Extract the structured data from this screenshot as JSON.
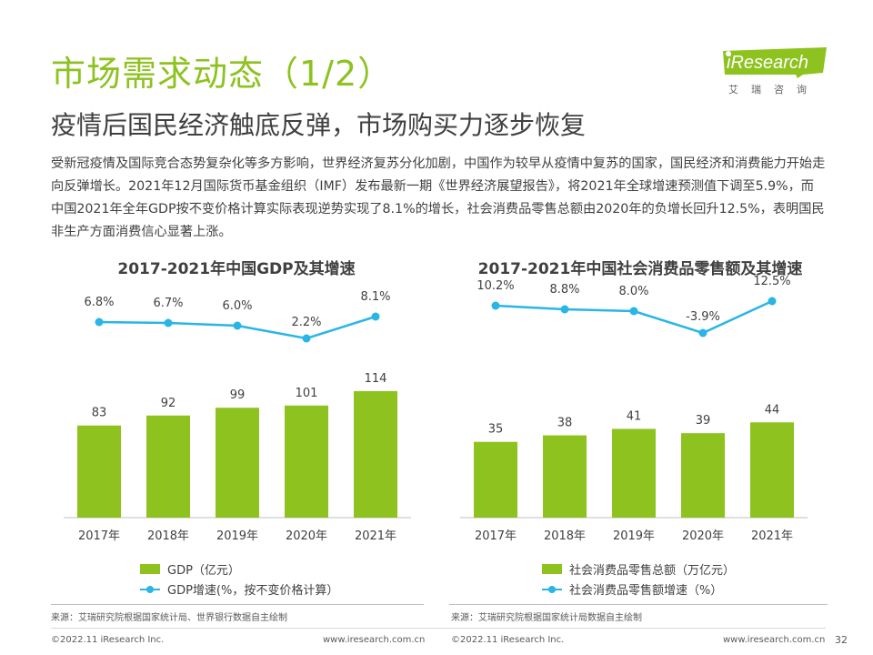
{
  "header": {
    "title": "市场需求动态（1/2）",
    "subtitle": "疫情后国民经济触底反弹，市场购买力逐步恢复"
  },
  "logo": {
    "text": "iResearch",
    "sub": "艾瑞咨询"
  },
  "body_text": "受新冠疫情及国际竞合态势复杂化等多方影响，世界经济复苏分化加剧，中国作为较早从疫情中复苏的国家，国民经济和消费能力开始走向反弹增长。2021年12月国际货币基金组织（IMF）发布最新一期《世界经济展望报告》，将2021年全球增速预测值下调至5.9%，而中国2021年全年GDP按不变价格计算实际表现逆势实现了8.1%的增长，社会消费品零售总额由2020年的负增长回升12.5%，表明国民非生产方面消费信心显著上涨。",
  "chart_data": [
    {
      "type": "bar",
      "title": "2017-2021年中国GDP及其增速",
      "categories": [
        "2017年",
        "2018年",
        "2019年",
        "2020年",
        "2021年"
      ],
      "series": [
        {
          "name": "GDP（亿元）",
          "type": "bar",
          "values": [
            83,
            92,
            99,
            101,
            114
          ]
        },
        {
          "name": "GDP增速(%，按不变价格计算）",
          "type": "line",
          "values": [
            6.8,
            6.7,
            6.0,
            2.2,
            8.1
          ],
          "labels": [
            "6.8%",
            "6.7%",
            "6.0%",
            "2.2%",
            "8.1%"
          ]
        }
      ],
      "grid": false,
      "legend": "bottom",
      "source": "来源：艾瑞研究院根据国家统计局、世界银行数据自主绘制"
    },
    {
      "type": "bar",
      "title": "2017-2021年中国社会消费品零售额及其增速",
      "categories": [
        "2017年",
        "2018年",
        "2019年",
        "2020年",
        "2021年"
      ],
      "series": [
        {
          "name": "社会消费品零售总额（万亿元）",
          "type": "bar",
          "values": [
            35,
            38,
            41,
            39,
            44
          ]
        },
        {
          "name": "社会消费品零售额增速（%）",
          "type": "line",
          "values": [
            10.2,
            8.8,
            8.0,
            -3.9,
            12.5
          ],
          "labels": [
            "10.2%",
            "8.8%",
            "8.0%",
            "-3.9%",
            "12.5%"
          ]
        }
      ],
      "grid": false,
      "legend": "bottom",
      "source": "来源：艾瑞研究院根据国家统计局数据自主绘制"
    }
  ],
  "colors": {
    "accent": "#8DC21F",
    "line": "#29B5E6",
    "text": "#404040"
  },
  "footer": {
    "left_copyright": "©2022.11 iResearch Inc.",
    "left_url": "www.iresearch.com.cn",
    "right_copyright": "©2022.11 iResearch Inc.",
    "right_url": "www.iresearch.com.cn",
    "page": "32"
  }
}
